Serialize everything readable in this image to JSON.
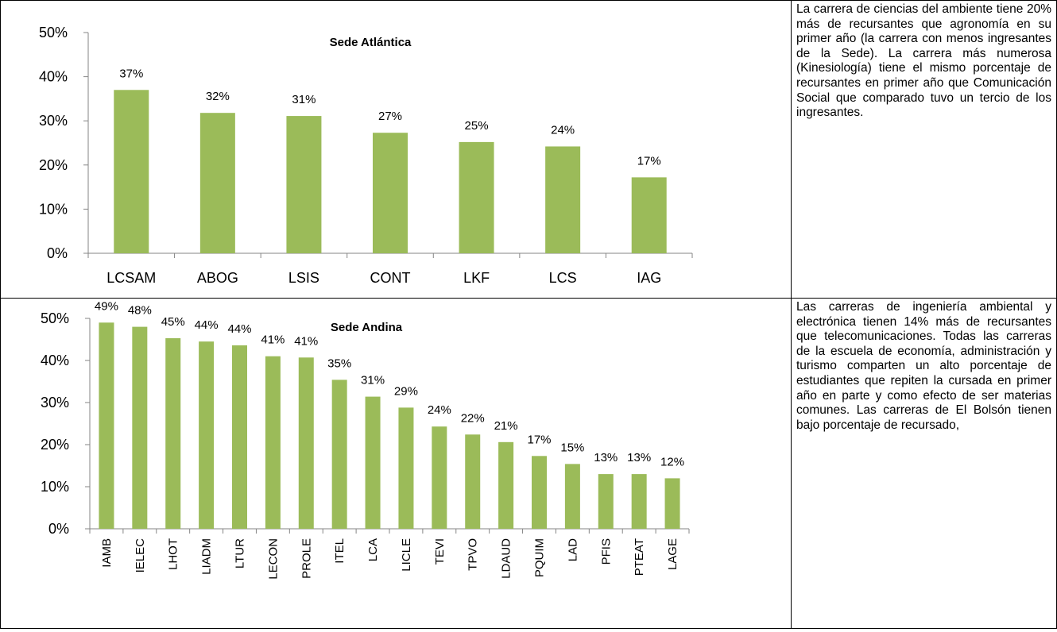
{
  "chart_data": [
    {
      "type": "bar",
      "title": "Sede Atlántica",
      "categories": [
        "LCSAM",
        "ABOG",
        "LSIS",
        "CONT",
        "LKF",
        "LCS",
        "IAG"
      ],
      "values": [
        37,
        31.8,
        31.1,
        27.3,
        25.2,
        24.2,
        17.2
      ],
      "value_labels": [
        "37%",
        "32%",
        "31%",
        "27%",
        "25%",
        "24%",
        "17%"
      ],
      "color": "#9bbb59",
      "ylim": [
        0,
        50
      ],
      "yticks": [
        {
          "value": 0,
          "label": "0%"
        },
        {
          "value": 10,
          "label": "10%"
        },
        {
          "value": 20,
          "label": "20%"
        },
        {
          "value": 30,
          "label": "30%"
        },
        {
          "value": 40,
          "label": "40%"
        },
        {
          "value": 50,
          "label": "50%"
        }
      ],
      "grid": false
    },
    {
      "type": "bar",
      "title": "Sede Andina",
      "categories": [
        "IAMB",
        "IELEC",
        "LHOT",
        "LIADM",
        "LTUR",
        "LECON",
        "PROLE",
        "ITEL",
        "LCA",
        "LICLE",
        "TEVI",
        "TPVO",
        "LDAUD",
        "PQUIM",
        "LAD",
        "PFIS",
        "PTEAT",
        "LAGE"
      ],
      "values": [
        49,
        48,
        45.3,
        44.5,
        43.6,
        41,
        40.7,
        35.4,
        31.4,
        28.8,
        24.3,
        22.4,
        20.6,
        17.3,
        15.4,
        13,
        13,
        12
      ],
      "value_labels": [
        "49%",
        "48%",
        "45%",
        "44%",
        "44%",
        "41%",
        "41%",
        "35%",
        "31%",
        "29%",
        "24%",
        "22%",
        "21%",
        "17%",
        "15%",
        "13%",
        "13%",
        "12%"
      ],
      "color": "#9bbb59",
      "ylim": [
        0,
        50
      ],
      "yticks": [
        {
          "value": 0,
          "label": "0%"
        },
        {
          "value": 10,
          "label": "10%"
        },
        {
          "value": 20,
          "label": "20%"
        },
        {
          "value": 30,
          "label": "30%"
        },
        {
          "value": 40,
          "label": "40%"
        },
        {
          "value": 50,
          "label": "50%"
        }
      ],
      "grid": false
    }
  ],
  "notes": [
    "La carrera de ciencias del ambiente tiene 20% más de recursantes que agronomía en su primer año (la carrera con menos ingresantes de la Sede). La carrera más numerosa (Kinesiología) tiene el mismo porcentaje de recursantes en primer año que Comunicación Social que comparado tuvo un tercio de los ingresantes.",
    "Las carreras de ingeniería ambiental y electrónica tienen 14% más de recursantes que telecomunicaciones. Todas las carreras de la escuela de economía, administración y turismo comparten un alto porcentaje de estudiantes que repiten la cursada en primer año en parte y como efecto de ser materias comunes. Las carreras de El Bolsón tienen bajo porcentaje de recursado,"
  ]
}
